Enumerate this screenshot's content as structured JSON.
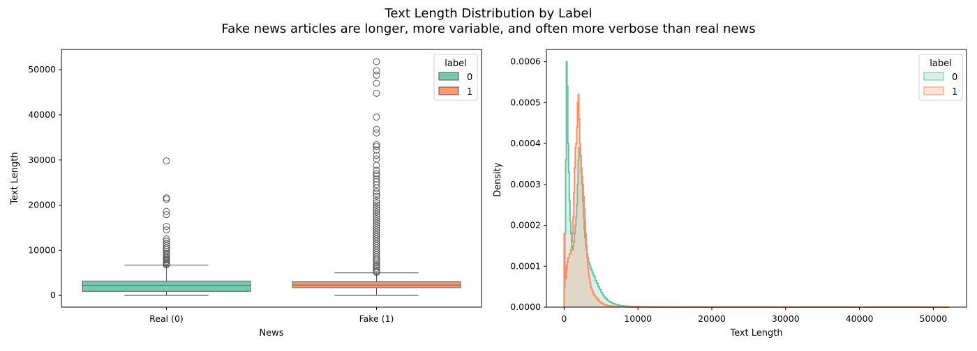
{
  "figure": {
    "title": "Text Length Distribution by Label",
    "subtitle": "Fake news articles are longer, more variable, and often more verbose than real news"
  },
  "colors": {
    "label_0": "#66c2a5",
    "label_1": "#fc8d62",
    "box_edge": "#555555"
  },
  "chart_data": [
    {
      "type": "box",
      "xlabel": "News",
      "ylabel": "Text Length",
      "ylim": [
        -2600,
        54500
      ],
      "yticks": [
        0,
        10000,
        20000,
        30000,
        40000,
        50000
      ],
      "yticklabels": [
        "0",
        "10000",
        "20000",
        "30000",
        "40000",
        "50000"
      ],
      "categories": [
        "Real (0)",
        "Fake (1)"
      ],
      "legend": {
        "title": "label",
        "entries": [
          "0",
          "1"
        ],
        "placement": "upper right"
      },
      "boxes": [
        {
          "label": "0",
          "category": "Real (0)",
          "min": 0,
          "q1": 900,
          "median": 2250,
          "q3": 3150,
          "whisker_high": 6700,
          "outliers": [
            6800,
            7000,
            7200,
            7500,
            7800,
            8000,
            8300,
            8600,
            9000,
            9300,
            9700,
            10100,
            10500,
            11000,
            11500,
            12000,
            12500,
            14500,
            15300,
            17900,
            18600,
            21300,
            21600,
            29800
          ]
        },
        {
          "label": "1",
          "category": "Fake (1)",
          "min": 0,
          "q1": 1700,
          "median": 2300,
          "q3": 3000,
          "whisker_high": 5000,
          "outliers": [
            5100,
            5300,
            5600,
            6000,
            6400,
            6800,
            7200,
            7600,
            8000,
            8500,
            9000,
            9500,
            10000,
            10500,
            11000,
            11500,
            12000,
            12500,
            13000,
            13500,
            14000,
            14500,
            15000,
            15500,
            16000,
            16500,
            17000,
            17500,
            18000,
            18500,
            19000,
            19500,
            20000,
            20500,
            21000,
            22000,
            22500,
            23000,
            23800,
            24500,
            25200,
            25800,
            26500,
            27000,
            27700,
            28800,
            30200,
            31000,
            32200,
            33000,
            33400,
            36000,
            36800,
            39500,
            44800,
            47000,
            48800,
            49800,
            51800
          ]
        }
      ]
    },
    {
      "type": "histogram",
      "xlabel": "Text Length",
      "ylabel": "Density",
      "xlim": [
        -2400,
        54500
      ],
      "ylim": [
        0,
        0.00063
      ],
      "xticks": [
        0,
        10000,
        20000,
        30000,
        40000,
        50000
      ],
      "xticklabels": [
        "0",
        "10000",
        "20000",
        "30000",
        "40000",
        "50000"
      ],
      "yticks": [
        0,
        0.0001,
        0.0002,
        0.0003,
        0.0004,
        0.0005,
        0.0006
      ],
      "yticklabels": [
        "0.0000",
        "0.0001",
        "0.0002",
        "0.0003",
        "0.0004",
        "0.0005",
        "0.0006"
      ],
      "legend": {
        "title": "label",
        "entries": [
          "0",
          "1"
        ],
        "placement": "upper right"
      },
      "series": [
        {
          "name": "0",
          "x": [
            0,
            100,
            200,
            300,
            400,
            500,
            600,
            700,
            800,
            900,
            1000,
            1100,
            1200,
            1300,
            1400,
            1500,
            1600,
            1700,
            1800,
            1900,
            2000,
            2100,
            2200,
            2300,
            2400,
            2500,
            2600,
            2700,
            2800,
            2900,
            3000,
            3100,
            3200,
            3300,
            3400,
            3500,
            3600,
            3700,
            3800,
            3900,
            4000,
            4200,
            4400,
            4600,
            4800,
            5000,
            5200,
            5400,
            5600,
            5800,
            6000,
            6300,
            6600,
            6900,
            7200,
            7500,
            8000,
            8500,
            9000,
            10000,
            11000,
            12000,
            15000,
            20000,
            30000,
            40000,
            52000
          ],
          "y": [
            5e-05,
            0.00018,
            0.00036,
            0.0006,
            0.00054,
            0.0004,
            0.00033,
            0.00026,
            0.00021,
            0.00018,
            0.00015,
            0.00014,
            0.00015,
            0.00016,
            0.00018,
            0.0002,
            0.00022,
            0.00025,
            0.0003,
            0.00036,
            0.00039,
            0.00038,
            0.00037,
            0.00033,
            0.0003,
            0.00026,
            0.00022,
            0.00019,
            0.00017,
            0.00015,
            0.00014,
            0.00013,
            0.00012,
            0.00011,
            0.000105,
            0.0001,
            9.5e-05,
            9e-05,
            8.5e-05,
            8e-05,
            7.5e-05,
            6.5e-05,
            5.8e-05,
            5e-05,
            4.3e-05,
            3.6e-05,
            3e-05,
            2.5e-05,
            2.1e-05,
            1.7e-05,
            1.4e-05,
            1.1e-05,
            8.5e-06,
            6.5e-06,
            5e-06,
            3.8e-06,
            2.8e-06,
            2e-06,
            1.5e-06,
            1e-06,
            7e-07,
            5e-07,
            3e-07,
            2e-07,
            1e-07,
            5e-08,
            0.0
          ]
        },
        {
          "name": "1",
          "x": [
            0,
            100,
            200,
            300,
            400,
            500,
            600,
            700,
            800,
            900,
            1000,
            1100,
            1200,
            1300,
            1400,
            1500,
            1600,
            1700,
            1800,
            1900,
            2000,
            2100,
            2200,
            2300,
            2400,
            2500,
            2600,
            2700,
            2800,
            2900,
            3000,
            3100,
            3200,
            3300,
            3400,
            3500,
            3600,
            3700,
            3800,
            3900,
            4000,
            4200,
            4400,
            4600,
            4800,
            5000,
            5200,
            5400,
            5600,
            5800,
            6000,
            6300,
            6600,
            6900,
            7200,
            7500,
            8000,
            8500,
            9000,
            10000,
            11000,
            12000,
            15000,
            20000,
            30000,
            40000,
            52000
          ],
          "y": [
            0.00018,
            0.0001,
            7e-05,
            9e-05,
            0.00011,
            0.00012,
            0.00012,
            0.00013,
            0.00013,
            0.00014,
            0.00016,
            0.00018,
            0.00022,
            0.00028,
            0.00034,
            0.00039,
            0.0004,
            0.00044,
            0.0005,
            0.00052,
            0.00046,
            0.0004,
            0.00037,
            0.00034,
            0.00032,
            0.0003,
            0.00027,
            0.00024,
            0.00021,
            0.00018,
            0.00015,
            0.00012,
            9.5e-05,
            8e-05,
            7e-05,
            6e-05,
            5e-05,
            4.5e-05,
            4e-05,
            3.5e-05,
            3e-05,
            2.5e-05,
            2e-05,
            1.6e-05,
            1.3e-05,
            1e-05,
            8e-06,
            6.5e-06,
            5e-06,
            4e-06,
            3e-06,
            2.4e-06,
            1.8e-06,
            1.4e-06,
            1e-06,
            8e-07,
            6e-07,
            4e-07,
            3e-07,
            2e-07,
            1.2e-07,
            8e-08,
            5e-08,
            2e-08,
            1e-08,
            0.0,
            0.0
          ]
        }
      ]
    }
  ]
}
